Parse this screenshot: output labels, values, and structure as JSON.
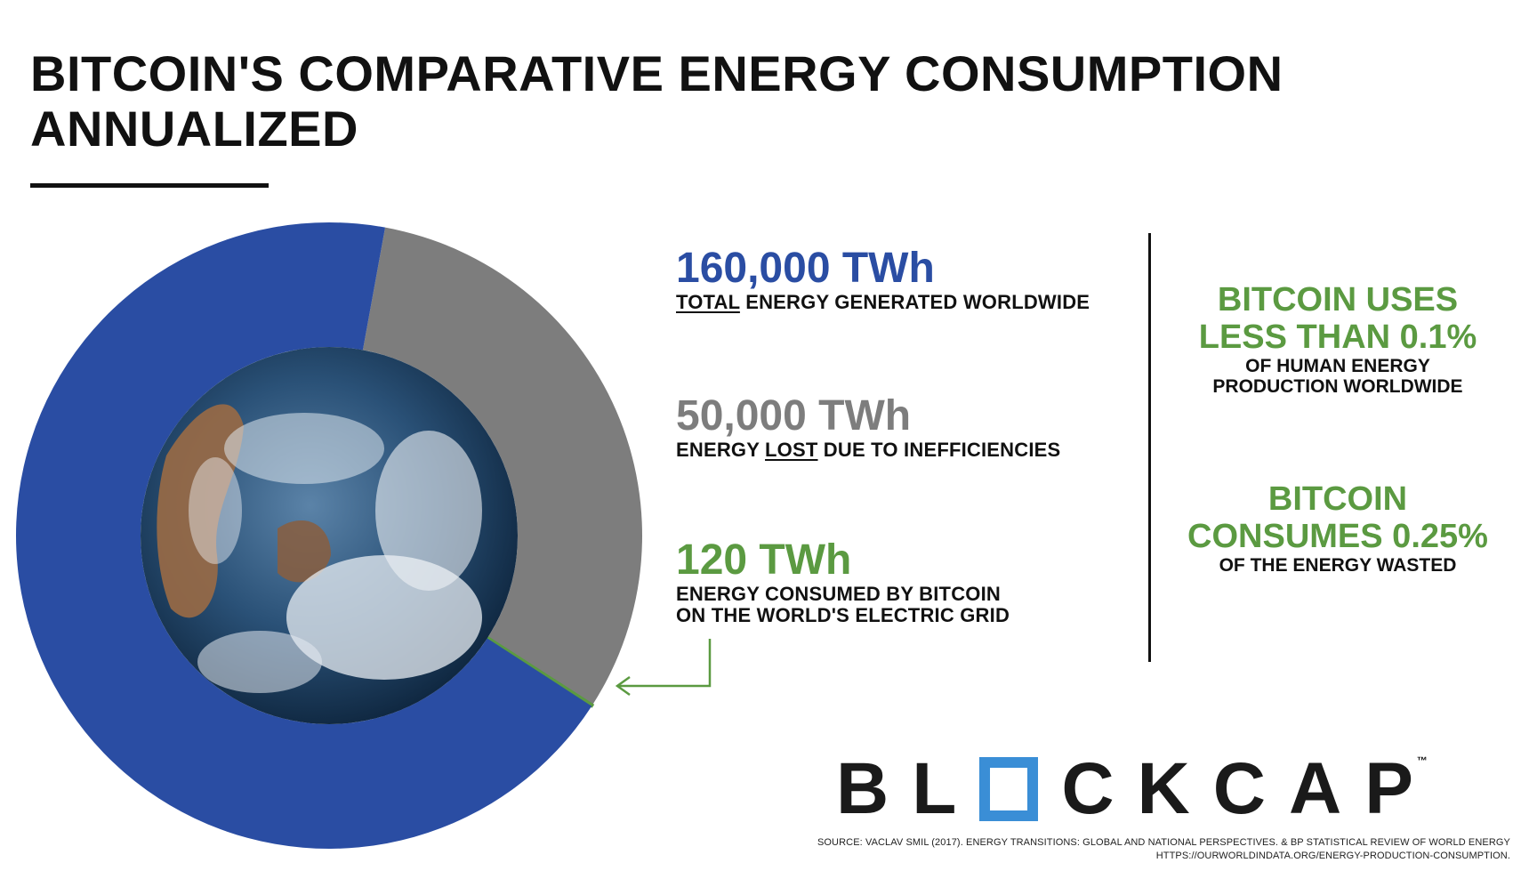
{
  "title_line1": "BITCOIN'S COMPARATIVE ENERGY CONSUMPTION",
  "title_line2": "ANNUALIZED",
  "stats": {
    "total": {
      "value": "160,000 TWh",
      "desc_emph": "TOTAL",
      "desc_rest": " ENERGY GENERATED WORLDWIDE"
    },
    "lost": {
      "value": "50,000 TWh",
      "desc_pre": "ENERGY ",
      "desc_emph": "LOST",
      "desc_rest": " DUE TO INEFFICIENCIES"
    },
    "bitcoin": {
      "value": "120 TWh",
      "desc_line1": "ENERGY CONSUMED BY BITCOIN",
      "desc_line2": "ON THE WORLD'S ELECTRIC GRID"
    }
  },
  "facts": {
    "uses": {
      "big_line1": "BITCOIN USES",
      "big_line2": "LESS THAN 0.1%",
      "small_line1": "OF HUMAN ENERGY",
      "small_line2": "PRODUCTION WORLDWIDE"
    },
    "consumes": {
      "big_line1": "BITCOIN",
      "big_line2": "CONSUMES 0.25%",
      "small_line1": "OF THE ENERGY WASTED"
    }
  },
  "logo": {
    "letters_before": [
      "B",
      "L"
    ],
    "letters_after": [
      "C",
      "K",
      "C",
      "A",
      "P"
    ],
    "trademark": "™",
    "box_color": "#3a8ed6"
  },
  "source_line1": "SOURCE: VACLAV SMIL (2017). ENERGY TRANSITIONS: GLOBAL AND NATIONAL PERSPECTIVES. & BP STATISTICAL REVIEW OF WORLD ENERGY",
  "source_line2": "HTTPS://OURWORLDINDATA.ORG/ENERGY-PRODUCTION-CONSUMPTION.",
  "colors": {
    "total": "#2a4da3",
    "lost": "#7d7d7d",
    "bitcoin": "#5b9a41",
    "earth_ocean": "#1d3d63"
  },
  "chart_data": {
    "type": "pie",
    "style": "donut",
    "center_image": "earth-globe",
    "unit": "TWh",
    "slices": [
      {
        "name": "160,000 TWh",
        "value": 110000,
        "color": "#2a4da3"
      },
      {
        "name": "50,000 TWh",
        "value": 50000,
        "color": "#7d7d7d"
      },
      {
        "name": "120 TWh",
        "value": 120,
        "color": "#5b9a41"
      }
    ]
  }
}
